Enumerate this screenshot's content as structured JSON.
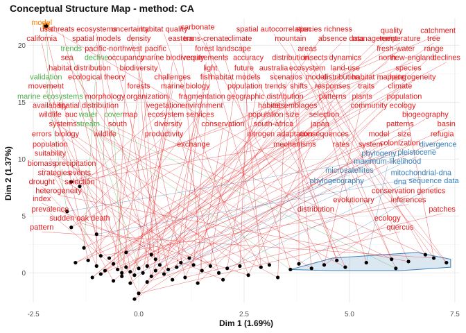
{
  "chart_data": {
    "type": "scatter",
    "title": "Conceptual Structure Map - method: CA",
    "xlabel": "Dim 1 (1.69%)",
    "ylabel": "Dim 2 (1.37%)",
    "xlim": [
      -2.6,
      7.6
    ],
    "ylim": [
      -2.6,
      22.4
    ],
    "x_ticks": [
      "-2.5",
      "0.0",
      "2.5",
      "5.0",
      "7.5"
    ],
    "y_ticks": [
      "0",
      "5",
      "10",
      "15",
      "20"
    ],
    "grid": true,
    "colors": {
      "cluster1": "#e41a1c",
      "cluster2": "#377eb8",
      "cluster3": "#4daf4a",
      "cluster4": "#ff7f00",
      "points": "#000000",
      "hull": "#377eb8"
    },
    "terms": [
      {
        "label": "model",
        "x": -2.3,
        "y": 21.8,
        "cluster": 4
      },
      {
        "label": "usa",
        "x": -2.2,
        "y": 21.2,
        "cluster": 1
      },
      {
        "label": "threats",
        "x": -1.8,
        "y": 21.2,
        "cluster": 1
      },
      {
        "label": "ecosystems",
        "x": -1.0,
        "y": 21.2,
        "cluster": 1
      },
      {
        "label": "uncertainty",
        "x": -0.2,
        "y": 21.2,
        "cluster": 1
      },
      {
        "label": "habitat quality",
        "x": 0.6,
        "y": 21.2,
        "cluster": 1
      },
      {
        "label": "carbonate",
        "x": 1.4,
        "y": 21.4,
        "cluster": 1
      },
      {
        "label": "spatial autocorrelation",
        "x": 3.2,
        "y": 21.2,
        "cluster": 1
      },
      {
        "label": "species richness",
        "x": 4.4,
        "y": 21.2,
        "cluster": 1
      },
      {
        "label": "quality",
        "x": 6.0,
        "y": 21.1,
        "cluster": 1
      },
      {
        "label": "catchment",
        "x": 7.1,
        "y": 21.1,
        "cluster": 1
      },
      {
        "label": "california",
        "x": -2.3,
        "y": 20.4,
        "cluster": 1
      },
      {
        "label": "spatial models",
        "x": -1.0,
        "y": 20.4,
        "cluster": 1
      },
      {
        "label": "density",
        "x": 0.0,
        "y": 20.4,
        "cluster": 1
      },
      {
        "label": "eastern",
        "x": 1.0,
        "y": 20.4,
        "cluster": 1
      },
      {
        "label": "trans-crenate",
        "x": 1.6,
        "y": 20.4,
        "cluster": 1
      },
      {
        "label": "climate",
        "x": 2.4,
        "y": 20.4,
        "cluster": 1
      },
      {
        "label": "mountain",
        "x": 3.6,
        "y": 20.4,
        "cluster": 1
      },
      {
        "label": "absence data",
        "x": 4.8,
        "y": 20.4,
        "cluster": 1
      },
      {
        "label": "management",
        "x": 5.6,
        "y": 20.4,
        "cluster": 1
      },
      {
        "label": "temperature",
        "x": 6.2,
        "y": 20.4,
        "cluster": 1
      },
      {
        "label": "tree",
        "x": 7.0,
        "y": 20.4,
        "cluster": 1
      },
      {
        "label": "trends",
        "x": -1.6,
        "y": 19.5,
        "cluster": 3
      },
      {
        "label": "pacific-northwest",
        "x": -0.6,
        "y": 19.5,
        "cluster": 1
      },
      {
        "label": "pacific",
        "x": 0.4,
        "y": 19.5,
        "cluster": 1
      },
      {
        "label": "forest landscape",
        "x": 2.0,
        "y": 19.5,
        "cluster": 1
      },
      {
        "label": "areas",
        "x": 4.0,
        "y": 19.5,
        "cluster": 1
      },
      {
        "label": "fresh-water",
        "x": 6.1,
        "y": 19.5,
        "cluster": 1
      },
      {
        "label": "range",
        "x": 7.0,
        "y": 19.5,
        "cluster": 1
      },
      {
        "label": "sea",
        "x": -1.7,
        "y": 18.7,
        "cluster": 1
      },
      {
        "label": "decline",
        "x": -1.0,
        "y": 18.7,
        "cluster": 3
      },
      {
        "label": "occupancy",
        "x": -0.3,
        "y": 18.7,
        "cluster": 1
      },
      {
        "label": "marine biodiversity",
        "x": 0.8,
        "y": 18.7,
        "cluster": 1
      },
      {
        "label": "requirements",
        "x": 1.6,
        "y": 18.7,
        "cluster": 1
      },
      {
        "label": "accuracy",
        "x": 2.6,
        "y": 18.7,
        "cluster": 1
      },
      {
        "label": "distribution",
        "x": 3.6,
        "y": 18.7,
        "cluster": 1
      },
      {
        "label": "insects",
        "x": 4.2,
        "y": 18.7,
        "cluster": 1
      },
      {
        "label": "dynamics",
        "x": 4.9,
        "y": 18.7,
        "cluster": 1
      },
      {
        "label": "north",
        "x": 5.9,
        "y": 18.7,
        "cluster": 1
      },
      {
        "label": "new-england",
        "x": 6.5,
        "y": 18.7,
        "cluster": 1
      },
      {
        "label": "declines",
        "x": 7.3,
        "y": 18.7,
        "cluster": 1
      },
      {
        "label": "habitat distribution",
        "x": -1.4,
        "y": 17.8,
        "cluster": 1
      },
      {
        "label": "biodiversity",
        "x": 0.0,
        "y": 17.8,
        "cluster": 1
      },
      {
        "label": "light",
        "x": 1.7,
        "y": 17.8,
        "cluster": 1
      },
      {
        "label": "future",
        "x": 2.5,
        "y": 17.8,
        "cluster": 1
      },
      {
        "label": "australia",
        "x": 3.2,
        "y": 17.8,
        "cluster": 1
      },
      {
        "label": "ecosystem",
        "x": 4.0,
        "y": 17.8,
        "cluster": 1
      },
      {
        "label": "land-use",
        "x": 4.9,
        "y": 17.8,
        "cluster": 1
      },
      {
        "label": "species",
        "x": 6.4,
        "y": 17.8,
        "cluster": 1
      },
      {
        "label": "validation",
        "x": -2.2,
        "y": 17.0,
        "cluster": 3
      },
      {
        "label": "ecological theory",
        "x": -1.0,
        "y": 17.0,
        "cluster": 1
      },
      {
        "label": "challenges",
        "x": 0.8,
        "y": 17.0,
        "cluster": 1
      },
      {
        "label": "fish",
        "x": 1.6,
        "y": 17.0,
        "cluster": 1
      },
      {
        "label": "habitat models",
        "x": 2.3,
        "y": 17.0,
        "cluster": 1
      },
      {
        "label": "scenarios",
        "x": 3.5,
        "y": 17.0,
        "cluster": 1
      },
      {
        "label": "model",
        "x": 4.2,
        "y": 17.0,
        "cluster": 1
      },
      {
        "label": "distribution",
        "x": 4.8,
        "y": 17.0,
        "cluster": 1
      },
      {
        "label": "habitat mapping",
        "x": 5.7,
        "y": 17.0,
        "cluster": 1
      },
      {
        "label": "heterogeneity",
        "x": 6.5,
        "y": 17.0,
        "cluster": 1
      },
      {
        "label": "movement",
        "x": -2.2,
        "y": 16.2,
        "cluster": 1
      },
      {
        "label": "forests",
        "x": 0.0,
        "y": 16.2,
        "cluster": 1
      },
      {
        "label": "marine",
        "x": 0.8,
        "y": 16.2,
        "cluster": 1
      },
      {
        "label": "biology",
        "x": 1.4,
        "y": 16.2,
        "cluster": 1
      },
      {
        "label": "population trends",
        "x": 2.8,
        "y": 16.2,
        "cluster": 1
      },
      {
        "label": "shifts",
        "x": 3.8,
        "y": 16.2,
        "cluster": 1
      },
      {
        "label": "responses",
        "x": 4.6,
        "y": 16.2,
        "cluster": 1
      },
      {
        "label": "traits",
        "x": 5.4,
        "y": 16.2,
        "cluster": 1
      },
      {
        "label": "climate",
        "x": 6.2,
        "y": 16.2,
        "cluster": 1
      },
      {
        "label": "marine ecosystems",
        "x": -2.1,
        "y": 15.3,
        "cluster": 3
      },
      {
        "label": "morphology",
        "x": -0.8,
        "y": 15.3,
        "cluster": 1
      },
      {
        "label": "organization",
        "x": 0.2,
        "y": 15.3,
        "cluster": 1
      },
      {
        "label": "fragmentation",
        "x": 1.5,
        "y": 15.3,
        "cluster": 1
      },
      {
        "label": "geographic distribution",
        "x": 3.0,
        "y": 15.3,
        "cluster": 1
      },
      {
        "label": "patterns",
        "x": 4.6,
        "y": 15.3,
        "cluster": 1
      },
      {
        "label": "plants",
        "x": 5.3,
        "y": 15.3,
        "cluster": 1
      },
      {
        "label": "population",
        "x": 6.3,
        "y": 15.3,
        "cluster": 1
      },
      {
        "label": "availability",
        "x": -2.1,
        "y": 14.5,
        "cluster": 1
      },
      {
        "label": "spatial distribution",
        "x": -1.2,
        "y": 14.5,
        "cluster": 1
      },
      {
        "label": "vegetation",
        "x": 0.6,
        "y": 14.5,
        "cluster": 1
      },
      {
        "label": "environment",
        "x": 1.5,
        "y": 14.5,
        "cluster": 1
      },
      {
        "label": "habitat",
        "x": 3.1,
        "y": 14.5,
        "cluster": 1
      },
      {
        "label": "assemblages",
        "x": 3.7,
        "y": 14.5,
        "cluster": 1
      },
      {
        "label": "community ecology",
        "x": 5.8,
        "y": 14.5,
        "cluster": 1
      },
      {
        "label": "wildlife",
        "x": -2.1,
        "y": 13.7,
        "cluster": 1
      },
      {
        "label": "auc",
        "x": -1.6,
        "y": 13.7,
        "cluster": 1
      },
      {
        "label": "water",
        "x": -1.2,
        "y": 13.7,
        "cluster": 3
      },
      {
        "label": "cover",
        "x": -0.6,
        "y": 13.7,
        "cluster": 3
      },
      {
        "label": "map",
        "x": -0.2,
        "y": 13.7,
        "cluster": 1
      },
      {
        "label": "ecosystem services",
        "x": 1.0,
        "y": 13.7,
        "cluster": 1
      },
      {
        "label": "population size",
        "x": 3.2,
        "y": 13.7,
        "cluster": 1
      },
      {
        "label": "selection",
        "x": 4.4,
        "y": 13.7,
        "cluster": 1
      },
      {
        "label": "biogeography",
        "x": 6.8,
        "y": 13.7,
        "cluster": 1
      },
      {
        "label": "systems",
        "x": -1.8,
        "y": 12.9,
        "cluster": 1
      },
      {
        "label": "stream",
        "x": -1.2,
        "y": 12.9,
        "cluster": 3
      },
      {
        "label": "south",
        "x": -0.5,
        "y": 12.9,
        "cluster": 1
      },
      {
        "label": "diversity",
        "x": 0.7,
        "y": 12.9,
        "cluster": 1
      },
      {
        "label": "conservation",
        "x": 2.0,
        "y": 12.9,
        "cluster": 1
      },
      {
        "label": "south-africa",
        "x": 3.2,
        "y": 12.9,
        "cluster": 1
      },
      {
        "label": "japan",
        "x": 4.3,
        "y": 12.9,
        "cluster": 1
      },
      {
        "label": "patterns",
        "x": 6.2,
        "y": 12.9,
        "cluster": 1
      },
      {
        "label": "basin",
        "x": 7.3,
        "y": 12.9,
        "cluster": 1
      },
      {
        "label": "errors",
        "x": -2.3,
        "y": 12.0,
        "cluster": 1
      },
      {
        "label": "biology",
        "x": -1.7,
        "y": 12.0,
        "cluster": 1
      },
      {
        "label": "wildlife",
        "x": -0.8,
        "y": 12.0,
        "cluster": 1
      },
      {
        "label": "productivity",
        "x": 0.6,
        "y": 12.0,
        "cluster": 1
      },
      {
        "label": "nitrogen",
        "x": 2.9,
        "y": 12.0,
        "cluster": 1
      },
      {
        "label": "adaptation",
        "x": 3.7,
        "y": 12.0,
        "cluster": 1
      },
      {
        "label": "consequences",
        "x": 4.4,
        "y": 12.0,
        "cluster": 1
      },
      {
        "label": "model",
        "x": 5.7,
        "y": 12.0,
        "cluster": 1
      },
      {
        "label": "size",
        "x": 6.3,
        "y": 12.0,
        "cluster": 1
      },
      {
        "label": "refugia",
        "x": 7.2,
        "y": 12.0,
        "cluster": 1
      },
      {
        "label": "population",
        "x": -2.1,
        "y": 11.1,
        "cluster": 1
      },
      {
        "label": "exchange",
        "x": 1.3,
        "y": 11.1,
        "cluster": 1
      },
      {
        "label": "mechanisms",
        "x": 3.7,
        "y": 11.1,
        "cluster": 1
      },
      {
        "label": "rates",
        "x": 4.8,
        "y": 11.1,
        "cluster": 1
      },
      {
        "label": "system",
        "x": 5.5,
        "y": 11.1,
        "cluster": 1
      },
      {
        "label": "colonization",
        "x": 6.2,
        "y": 11.2,
        "cluster": 1
      },
      {
        "label": "divergence",
        "x": 7.1,
        "y": 11.1,
        "cluster": 2
      },
      {
        "label": "suitability",
        "x": -2.1,
        "y": 10.3,
        "cluster": 1
      },
      {
        "label": "phylogeny",
        "x": 5.7,
        "y": 10.3,
        "cluster": 2
      },
      {
        "label": "pleistocene",
        "x": 6.6,
        "y": 10.4,
        "cluster": 2
      },
      {
        "label": "biomass",
        "x": -2.3,
        "y": 9.4,
        "cluster": 1
      },
      {
        "label": "precipitation",
        "x": -1.5,
        "y": 9.4,
        "cluster": 1
      },
      {
        "label": "maximum-likelihood",
        "x": 5.9,
        "y": 9.6,
        "cluster": 2
      },
      {
        "label": "strategies",
        "x": -2.0,
        "y": 8.6,
        "cluster": 1
      },
      {
        "label": "events",
        "x": -1.4,
        "y": 8.6,
        "cluster": 1
      },
      {
        "label": "microsatellites",
        "x": 5.0,
        "y": 8.8,
        "cluster": 2
      },
      {
        "label": "mitochondrial-dna",
        "x": 6.7,
        "y": 8.6,
        "cluster": 2
      },
      {
        "label": "drought",
        "x": -2.3,
        "y": 7.8,
        "cluster": 1
      },
      {
        "label": "selection",
        "x": -1.4,
        "y": 7.8,
        "cluster": 1
      },
      {
        "label": "phylogeography",
        "x": 4.7,
        "y": 7.9,
        "cluster": 2
      },
      {
        "label": "dna",
        "x": 6.2,
        "y": 7.8,
        "cluster": 2
      },
      {
        "label": "sequence data",
        "x": 7.0,
        "y": 7.9,
        "cluster": 2
      },
      {
        "label": "heterogeneity",
        "x": -1.9,
        "y": 7.0,
        "cluster": 1
      },
      {
        "label": "conservation genetics",
        "x": 6.4,
        "y": 7.0,
        "cluster": 1
      },
      {
        "label": "index",
        "x": -2.3,
        "y": 6.3,
        "cluster": 1
      },
      {
        "label": "evolutionary",
        "x": 5.1,
        "y": 6.2,
        "cluster": 1
      },
      {
        "label": "inferences",
        "x": 6.4,
        "y": 6.2,
        "cluster": 1
      },
      {
        "label": "prevalence",
        "x": -2.1,
        "y": 5.4,
        "cluster": 1
      },
      {
        "label": "distribution",
        "x": 4.2,
        "y": 5.4,
        "cluster": 1
      },
      {
        "label": "patches",
        "x": 7.2,
        "y": 5.4,
        "cluster": 1
      },
      {
        "label": "sudden oak death",
        "x": -1.4,
        "y": 4.6,
        "cluster": 1
      },
      {
        "label": "ecology",
        "x": 5.9,
        "y": 4.6,
        "cluster": 1
      },
      {
        "label": "pattern",
        "x": -2.3,
        "y": 3.8,
        "cluster": 1
      },
      {
        "label": "quercus",
        "x": 6.2,
        "y": 3.8,
        "cluster": 1
      }
    ],
    "points": [
      {
        "x": -2.2,
        "y": 21.7
      },
      {
        "x": -1.6,
        "y": 8.0
      },
      {
        "x": -1.4,
        "y": 7.6
      },
      {
        "x": -1.7,
        "y": 5.4
      },
      {
        "x": -1.6,
        "y": 4.0
      },
      {
        "x": -1.0,
        "y": 3.4
      },
      {
        "x": -1.3,
        "y": 2.2
      },
      {
        "x": -0.9,
        "y": 1.5
      },
      {
        "x": -1.5,
        "y": 0.9
      },
      {
        "x": -1.2,
        "y": 1.1
      },
      {
        "x": -1.0,
        "y": 0.6
      },
      {
        "x": -0.8,
        "y": 0.2
      },
      {
        "x": -0.6,
        "y": 0.8
      },
      {
        "x": -0.5,
        "y": 0.3
      },
      {
        "x": -0.4,
        "y": 0.0
      },
      {
        "x": -0.3,
        "y": 0.5
      },
      {
        "x": -0.2,
        "y": 0.1
      },
      {
        "x": -0.1,
        "y": -0.2
      },
      {
        "x": 0.0,
        "y": 0.4
      },
      {
        "x": 0.1,
        "y": 0.0
      },
      {
        "x": 0.2,
        "y": 0.6
      },
      {
        "x": 0.3,
        "y": -0.3
      },
      {
        "x": 0.4,
        "y": 0.2
      },
      {
        "x": 0.5,
        "y": 0.7
      },
      {
        "x": 0.6,
        "y": -0.1
      },
      {
        "x": 0.7,
        "y": 0.3
      },
      {
        "x": 0.9,
        "y": 0.5
      },
      {
        "x": 1.0,
        "y": 0.9
      },
      {
        "x": 1.1,
        "y": -0.4
      },
      {
        "x": 1.3,
        "y": 0.7
      },
      {
        "x": 1.5,
        "y": 0.2
      },
      {
        "x": 1.7,
        "y": 0.6
      },
      {
        "x": 1.9,
        "y": 0.0
      },
      {
        "x": 2.1,
        "y": 0.4
      },
      {
        "x": 2.4,
        "y": 0.6
      },
      {
        "x": 2.6,
        "y": -0.2
      },
      {
        "x": 2.9,
        "y": 0.5
      },
      {
        "x": 3.1,
        "y": 0.7
      },
      {
        "x": 3.3,
        "y": -0.4
      },
      {
        "x": 3.6,
        "y": 0.3
      },
      {
        "x": 3.8,
        "y": 0.8
      },
      {
        "x": 4.1,
        "y": 0.4
      },
      {
        "x": 4.4,
        "y": 0.7
      },
      {
        "x": 4.7,
        "y": 1.1
      },
      {
        "x": 4.9,
        "y": 0.5
      },
      {
        "x": 5.4,
        "y": 0.9
      },
      {
        "x": 6.0,
        "y": 1.2
      },
      {
        "x": 6.4,
        "y": 1.0
      },
      {
        "x": 6.8,
        "y": 1.6
      },
      {
        "x": 7.0,
        "y": 1.3
      },
      {
        "x": 7.3,
        "y": 0.9
      },
      {
        "x": 6.1,
        "y": 0.4
      },
      {
        "x": -0.6,
        "y": -0.7
      },
      {
        "x": -0.2,
        "y": -0.9
      },
      {
        "x": 0.2,
        "y": -0.8
      },
      {
        "x": -1.1,
        "y": -0.4
      },
      {
        "x": 0.0,
        "y": -1.8
      },
      {
        "x": -0.1,
        "y": -2.3
      },
      {
        "x": -0.4,
        "y": -0.3
      },
      {
        "x": 0.8,
        "y": -0.6
      },
      {
        "x": 1.4,
        "y": -0.9
      },
      {
        "x": 2.0,
        "y": -0.6
      },
      {
        "x": -0.7,
        "y": 1.3
      },
      {
        "x": 0.4,
        "y": 1.2
      },
      {
        "x": -0.9,
        "y": -0.1
      },
      {
        "x": 0.3,
        "y": 1.6
      },
      {
        "x": -0.3,
        "y": 1.8
      },
      {
        "x": 1.2,
        "y": 1.3
      }
    ]
  }
}
